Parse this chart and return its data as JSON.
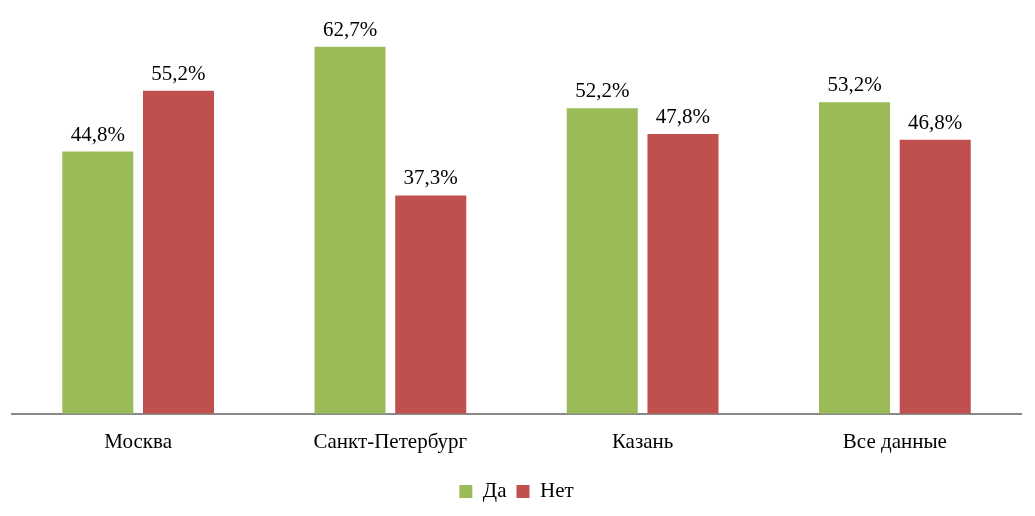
{
  "chart_data": {
    "type": "bar",
    "categories": [
      "Москва",
      "Санкт-Петербург",
      "Казань",
      "Все данные"
    ],
    "series": [
      {
        "name": "Да",
        "color": "#9bbb59",
        "values": [
          44.8,
          62.7,
          52.2,
          53.2
        ],
        "value_labels": [
          "44,8%",
          "62,7%",
          "52,2%",
          "53,2%"
        ]
      },
      {
        "name": "Нет",
        "color": "#c0504d",
        "values": [
          55.2,
          37.3,
          47.8,
          46.8
        ],
        "value_labels": [
          "55,2%",
          "37,3%",
          "47,8%",
          "46,8%"
        ]
      }
    ],
    "tick_labels": "x",
    "grid": false,
    "legend": "bottom"
  }
}
